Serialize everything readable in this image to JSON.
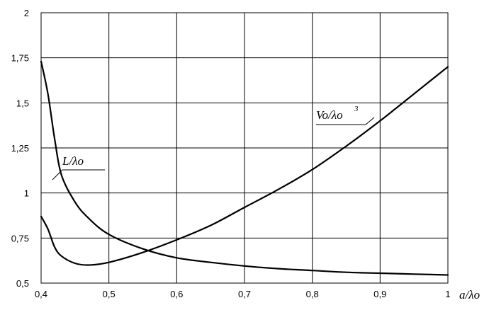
{
  "chart_data": {
    "type": "line",
    "xlabel": "a/λo",
    "ylabel": "",
    "xlim": [
      0.4,
      1.0
    ],
    "ylim": [
      0.5,
      2.0
    ],
    "x_ticks": [
      "0,4",
      "0,5",
      "0,6",
      "0,7",
      "0,8",
      "0,9",
      "1"
    ],
    "y_ticks": [
      "0,5",
      "0,75",
      "1",
      "1,25",
      "1,5",
      "1,75",
      "2"
    ],
    "grid": true,
    "series": [
      {
        "name": "L/λo",
        "label_main": "L/λo",
        "x": [
          0.4,
          0.41,
          0.42,
          0.43,
          0.45,
          0.47,
          0.5,
          0.55,
          0.6,
          0.65,
          0.7,
          0.75,
          0.8,
          0.85,
          0.9,
          0.95,
          1.0
        ],
        "y": [
          1.73,
          1.55,
          1.3,
          1.1,
          0.95,
          0.86,
          0.77,
          0.69,
          0.64,
          0.615,
          0.595,
          0.58,
          0.57,
          0.56,
          0.555,
          0.55,
          0.545
        ]
      },
      {
        "name": "Vo/λo3",
        "label_main": "Vo/λo",
        "label_sup": "3",
        "x": [
          0.4,
          0.41,
          0.42,
          0.43,
          0.45,
          0.47,
          0.5,
          0.55,
          0.6,
          0.65,
          0.7,
          0.75,
          0.8,
          0.85,
          0.9,
          0.95,
          1.0
        ],
        "y": [
          0.87,
          0.8,
          0.7,
          0.65,
          0.61,
          0.6,
          0.615,
          0.67,
          0.74,
          0.82,
          0.92,
          1.02,
          1.13,
          1.26,
          1.4,
          1.55,
          1.7
        ]
      }
    ]
  }
}
